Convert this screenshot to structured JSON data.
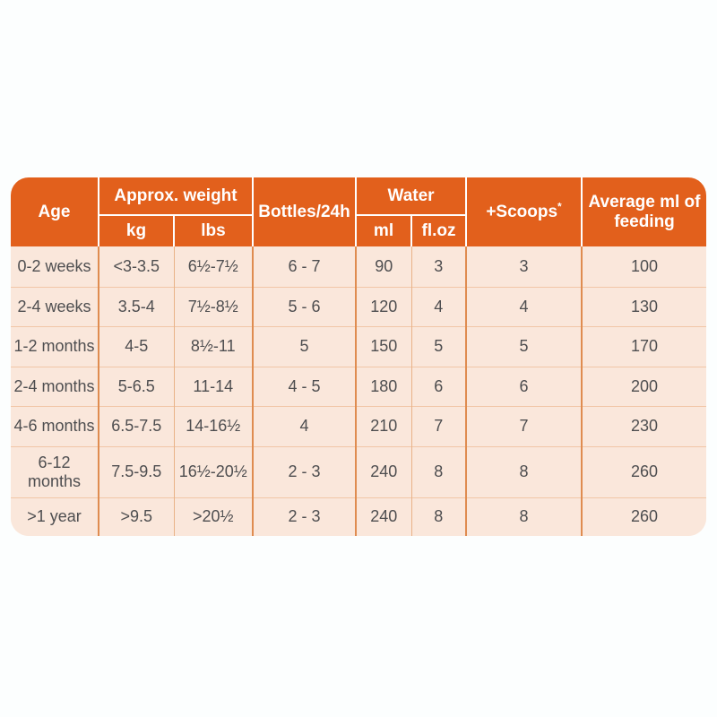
{
  "table": {
    "header": {
      "age": "Age",
      "approx_weight": "Approx. weight",
      "kg": "kg",
      "lbs": "lbs",
      "bottles": "Bottles/24h",
      "water": "Water",
      "ml": "ml",
      "floz": "fl.oz",
      "scoops": "+Scoops",
      "scoops_asterisk": "*",
      "average": "Average ml of feeding"
    },
    "rows": [
      {
        "age": "0-2 weeks",
        "kg": "<3-3.5",
        "lbs": "6½-7½",
        "bottles": "6 - 7",
        "ml": "90",
        "floz": "3",
        "scoops": "3",
        "avg": "100"
      },
      {
        "age": "2-4 weeks",
        "kg": "3.5-4",
        "lbs": "7½-8½",
        "bottles": "5 - 6",
        "ml": "120",
        "floz": "4",
        "scoops": "4",
        "avg": "130"
      },
      {
        "age": "1-2 months",
        "kg": "4-5",
        "lbs": "8½-11",
        "bottles": "5",
        "ml": "150",
        "floz": "5",
        "scoops": "5",
        "avg": "170"
      },
      {
        "age": "2-4 months",
        "kg": "5-6.5",
        "lbs": "11-14",
        "bottles": "4 - 5",
        "ml": "180",
        "floz": "6",
        "scoops": "6",
        "avg": "200"
      },
      {
        "age": "4-6 months",
        "kg": "6.5-7.5",
        "lbs": "14-16½",
        "bottles": "4",
        "ml": "210",
        "floz": "7",
        "scoops": "7",
        "avg": "230"
      },
      {
        "age": "6-12\nmonths",
        "kg": "7.5-9.5",
        "lbs": "16½-20½",
        "bottles": "2 - 3",
        "ml": "240",
        "floz": "8",
        "scoops": "8",
        "avg": "260"
      },
      {
        "age": ">1 year",
        "kg": ">9.5",
        "lbs": ">20½",
        "bottles": "2 - 3",
        "ml": "240",
        "floz": "8",
        "scoops": "8",
        "avg": "260"
      }
    ]
  },
  "colors": {
    "header_orange": "#E2601C",
    "row_background": "#FAE7DB",
    "body_text": "#4E4E50",
    "grid_light": "#F1C6A7",
    "grid_dark": "#DF8C50"
  },
  "chart_data": {
    "type": "table",
    "columns": [
      "Age",
      "Approx. weight kg",
      "Approx. weight lbs",
      "Bottles/24h",
      "Water ml",
      "Water fl.oz",
      "+Scoops*",
      "Average ml of feeding"
    ],
    "rows": [
      [
        "0-2 weeks",
        "<3-3.5",
        "6½-7½",
        "6 - 7",
        "90",
        "3",
        "3",
        "100"
      ],
      [
        "2-4 weeks",
        "3.5-4",
        "7½-8½",
        "5 - 6",
        "120",
        "4",
        "4",
        "130"
      ],
      [
        "1-2 months",
        "4-5",
        "8½-11",
        "5",
        "150",
        "5",
        "5",
        "170"
      ],
      [
        "2-4 months",
        "5-6.5",
        "11-14",
        "4 - 5",
        "180",
        "6",
        "6",
        "200"
      ],
      [
        "4-6 months",
        "6.5-7.5",
        "14-16½",
        "4",
        "210",
        "7",
        "7",
        "230"
      ],
      [
        "6-12 months",
        "7.5-9.5",
        "16½-20½",
        "2 - 3",
        "240",
        "8",
        "8",
        "260"
      ],
      [
        ">1 year",
        ">9.5",
        ">20½",
        "2 - 3",
        "240",
        "8",
        "8",
        "260"
      ]
    ]
  }
}
